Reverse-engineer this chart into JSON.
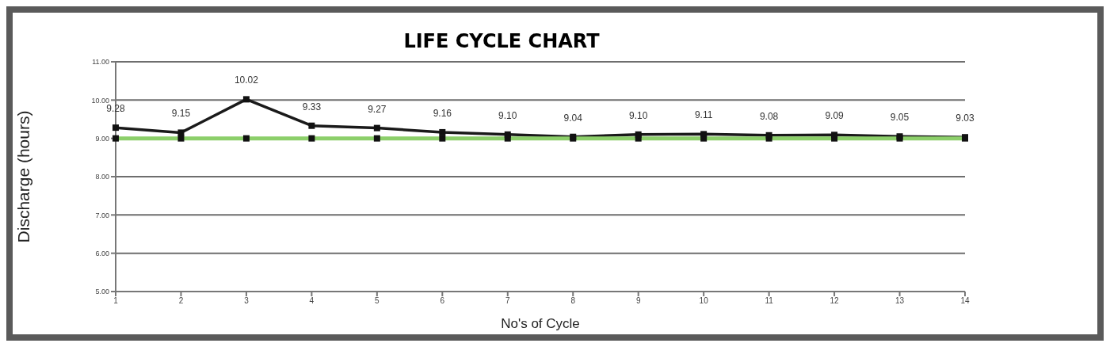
{
  "chart_data": {
    "type": "line",
    "title": "LIFE CYCLE CHART",
    "xlabel": "No's of Cycle",
    "ylabel": "Discharge (hours)",
    "categories": [
      "1",
      "2",
      "3",
      "4",
      "5",
      "6",
      "7",
      "8",
      "9",
      "10",
      "11",
      "12",
      "13",
      "14"
    ],
    "series": [
      {
        "color": "#1a1a1a",
        "values": [
          9.28,
          9.15,
          10.02,
          9.33,
          9.27,
          9.16,
          9.1,
          9.04,
          9.1,
          9.11,
          9.08,
          9.09,
          9.05,
          9.03
        ],
        "value_labels": [
          "9.28",
          "9.15",
          "10.02",
          "9.33",
          "9.27",
          "9.16",
          "9.10",
          "9.04",
          "9.10",
          "9.11",
          "9.08",
          "9.09",
          "9.05",
          "9.03"
        ]
      },
      {
        "color": "#8ccf6a",
        "values": [
          9,
          9,
          9,
          9,
          9,
          9,
          9,
          9,
          9,
          9,
          9,
          9,
          9,
          9
        ]
      }
    ],
    "ylim": [
      5,
      11
    ],
    "yticks": [
      {
        "value": 5,
        "label": "5.00"
      },
      {
        "value": 6,
        "label": "6.00"
      },
      {
        "value": 7,
        "label": "7.00"
      },
      {
        "value": 8,
        "label": "8.00"
      },
      {
        "value": 9,
        "label": "9.00"
      },
      {
        "value": 10,
        "label": "10.00"
      },
      {
        "value": 11,
        "label": "11.00"
      }
    ],
    "grid": "y",
    "marker": "square"
  }
}
